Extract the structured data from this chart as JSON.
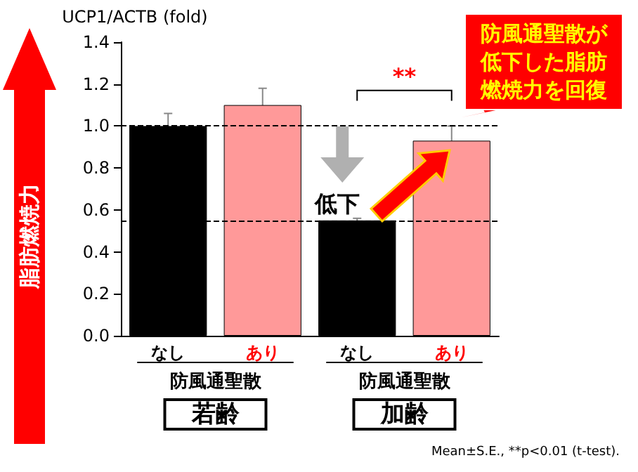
{
  "chart_data": {
    "type": "bar",
    "ylabel": "UCP1/ACTB (fold)",
    "categories": [
      "なし",
      "あり",
      "なし",
      "あり"
    ],
    "values": [
      1.0,
      1.1,
      0.55,
      0.93
    ],
    "colors": [
      "#000000",
      "#ff9999",
      "#000000",
      "#ff9999"
    ],
    "errors": [
      0.06,
      0.08,
      0.01,
      0.07
    ],
    "ylim": [
      0,
      1.4
    ],
    "yticks": [
      {
        "value": 0,
        "label": "0.0"
      },
      {
        "value": 0.2,
        "label": "0.2"
      },
      {
        "value": 0.4,
        "label": "0.4"
      },
      {
        "value": 0.6,
        "label": "0.6"
      },
      {
        "value": 0.8,
        "label": "0.8"
      },
      {
        "value": 1,
        "label": "1.0"
      },
      {
        "value": 1.2,
        "label": "1.2"
      },
      {
        "value": 1.4,
        "label": "1.4"
      }
    ],
    "grid": false,
    "ref_lines": [
      {
        "axis": "y",
        "value": 1.0,
        "color": "#000000",
        "line_style": "dashed"
      },
      {
        "axis": "y",
        "value": 0.55,
        "color": "#000000",
        "line_style": "dashed"
      }
    ],
    "annotations": [
      "防風通聖散が低下した脂肪燃焼力を回復",
      "**",
      {
        "text": "低下",
        "y": 0.55
      },
      "防風通聖散",
      "防風通聖散",
      "若齢",
      "加齢",
      "脂肪燃焼力",
      "Mean±S.E., **p<0.01 (t-test)."
    ]
  }
}
